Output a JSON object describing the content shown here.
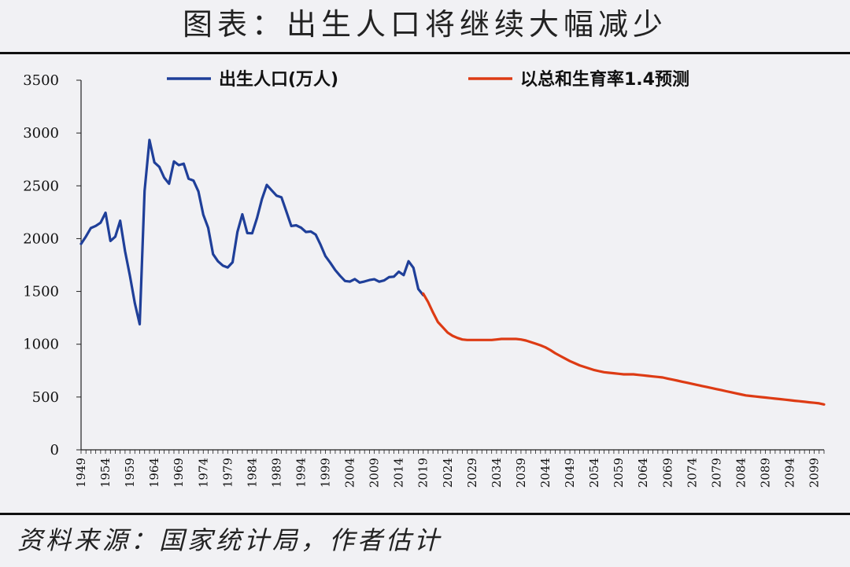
{
  "header": {
    "title": "图表：出生人口将继续大幅减少"
  },
  "footer": {
    "source": "资料来源：国家统计局，作者估计"
  },
  "chart_data": {
    "type": "line",
    "title": "图表：出生人口将继续大幅减少",
    "xlabel": "",
    "ylabel": "",
    "ylim": [
      0,
      3500
    ],
    "xlim": [
      1949,
      2101
    ],
    "yticks": [
      0,
      500,
      1000,
      1500,
      2000,
      2500,
      3000,
      3500
    ],
    "xticks": [
      "1949",
      "1954",
      "1959",
      "1964",
      "1969",
      "1974",
      "1979",
      "1984",
      "1989",
      "1994",
      "1999",
      "2004",
      "2009",
      "2014",
      "2019",
      "2024",
      "2029",
      "2034",
      "2039",
      "2044",
      "2049",
      "2054",
      "2059",
      "2064",
      "2069",
      "2074",
      "2079",
      "2084",
      "2089",
      "2094",
      "2099"
    ],
    "grid": false,
    "legend": "top",
    "colors": {
      "actual": "#1f3f99",
      "forecast": "#dd3b14"
    },
    "series": [
      {
        "name": "出生人口(万人)",
        "x": [
          1949,
          1950,
          1951,
          1952,
          1953,
          1954,
          1955,
          1956,
          1957,
          1958,
          1959,
          1960,
          1961,
          1962,
          1963,
          1964,
          1965,
          1966,
          1967,
          1968,
          1969,
          1970,
          1971,
          1972,
          1973,
          1974,
          1975,
          1976,
          1977,
          1978,
          1979,
          1980,
          1981,
          1982,
          1983,
          1984,
          1985,
          1986,
          1987,
          1988,
          1989,
          1990,
          1991,
          1992,
          1993,
          1994,
          1995,
          1996,
          1997,
          1998,
          1999,
          2000,
          2001,
          2002,
          2003,
          2004,
          2005,
          2006,
          2007,
          2008,
          2009,
          2010,
          2011,
          2012,
          2013,
          2014,
          2015,
          2016,
          2017,
          2018,
          2019
        ],
        "y": [
          1950,
          2020,
          2100,
          2120,
          2151,
          2245,
          1978,
          2019,
          2169,
          1880,
          1647,
          1389,
          1189,
          2451,
          2934,
          2721,
          2679,
          2577,
          2520,
          2731,
          2696,
          2710,
          2567,
          2550,
          2447,
          2226,
          2102,
          1853,
          1786,
          1745,
          1727,
          1776,
          2064,
          2230,
          2052,
          2050,
          2196,
          2374,
          2508,
          2457,
          2407,
          2391,
          2258,
          2119,
          2126,
          2104,
          2063,
          2067,
          2038,
          1942,
          1834,
          1771,
          1702,
          1647,
          1599,
          1593,
          1617,
          1584,
          1594,
          1608,
          1615,
          1592,
          1604,
          1635,
          1640,
          1687,
          1655,
          1786,
          1723,
          1523,
          1465
        ]
      },
      {
        "name": "以总和生育率1.4预测",
        "x": [
          2019,
          2020,
          2021,
          2022,
          2023,
          2024,
          2025,
          2026,
          2027,
          2028,
          2029,
          2030,
          2031,
          2032,
          2033,
          2034,
          2035,
          2036,
          2037,
          2038,
          2039,
          2040,
          2041,
          2042,
          2043,
          2044,
          2045,
          2046,
          2047,
          2048,
          2049,
          2050,
          2051,
          2052,
          2053,
          2054,
          2055,
          2056,
          2057,
          2058,
          2059,
          2060,
          2061,
          2062,
          2063,
          2064,
          2065,
          2066,
          2067,
          2068,
          2069,
          2070,
          2071,
          2072,
          2073,
          2074,
          2075,
          2076,
          2077,
          2078,
          2079,
          2080,
          2081,
          2082,
          2083,
          2084,
          2085,
          2086,
          2087,
          2088,
          2089,
          2090,
          2091,
          2092,
          2093,
          2094,
          2095,
          2096,
          2097,
          2098,
          2099,
          2100,
          2101
        ],
        "y": [
          1480,
          1400,
          1300,
          1210,
          1160,
          1110,
          1080,
          1060,
          1045,
          1040,
          1040,
          1040,
          1040,
          1040,
          1040,
          1045,
          1050,
          1050,
          1050,
          1050,
          1045,
          1035,
          1020,
          1005,
          990,
          970,
          945,
          915,
          890,
          865,
          840,
          820,
          800,
          785,
          770,
          755,
          745,
          735,
          730,
          725,
          720,
          715,
          715,
          715,
          710,
          705,
          700,
          695,
          690,
          685,
          675,
          665,
          655,
          645,
          635,
          625,
          615,
          605,
          595,
          585,
          575,
          565,
          555,
          545,
          535,
          525,
          515,
          510,
          505,
          500,
          495,
          490,
          485,
          480,
          475,
          470,
          465,
          460,
          455,
          450,
          445,
          440,
          430
        ]
      }
    ]
  }
}
